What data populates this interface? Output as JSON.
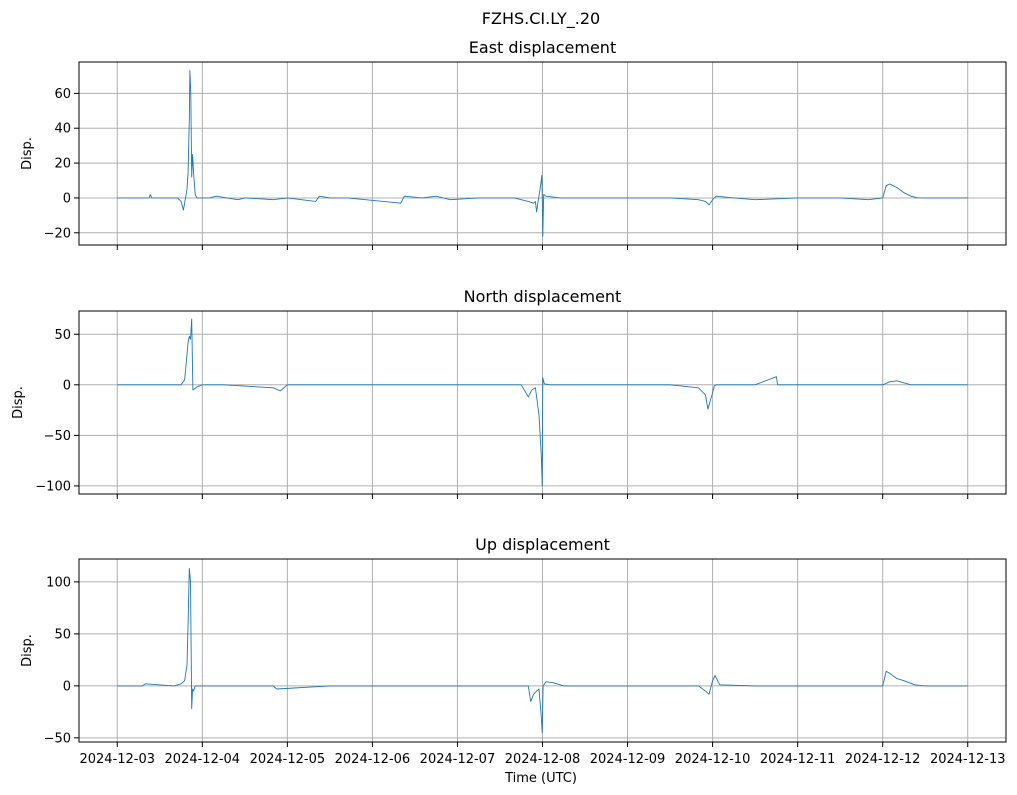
{
  "suptitle": "FZHS.CI.LY_.20",
  "xlabel": "Time (UTC)",
  "line_color": "#1f77b4",
  "chart_data": [
    {
      "type": "line",
      "title": "East displacement",
      "ylabel": "Disp.",
      "xlim": [
        "2024-12-03",
        "2024-12-13"
      ],
      "ylim": [
        -27,
        78
      ],
      "yticks": [
        -20,
        0,
        20,
        40,
        60
      ],
      "ytick_labels": [
        "−20",
        "0",
        "20",
        "40",
        "60"
      ],
      "grid": true,
      "series": [
        {
          "x": [
            "2024-12-03T00:00",
            "2024-12-03T09:00",
            "2024-12-03T09:20",
            "2024-12-03T09:45",
            "2024-12-03T17:00",
            "2024-12-03T18:00",
            "2024-12-03T18:40",
            "2024-12-03T19:15",
            "2024-12-03T19:40",
            "2024-12-03T20:00",
            "2024-12-03T20:20",
            "2024-12-03T20:30",
            "2024-12-03T20:45",
            "2024-12-03T21:00",
            "2024-12-03T21:15",
            "2024-12-03T21:30",
            "2024-12-03T22:00",
            "2024-12-03T22:30",
            "2024-12-04T02:00",
            "2024-12-04T04:00",
            "2024-12-04T10:00",
            "2024-12-04T12:00",
            "2024-12-04T20:00",
            "2024-12-05T00:00",
            "2024-12-05T08:00",
            "2024-12-05T09:00",
            "2024-12-05T12:00",
            "2024-12-05T17:00",
            "2024-12-06T08:00",
            "2024-12-06T09:00",
            "2024-12-06T14:00",
            "2024-12-06T18:00",
            "2024-12-06T22:00",
            "2024-12-07T06:00",
            "2024-12-07T16:00",
            "2024-12-07T18:00",
            "2024-12-07T20:00",
            "2024-12-07T21:30",
            "2024-12-07T22:00",
            "2024-12-07T22:20",
            "2024-12-07T22:40",
            "2024-12-07T23:20",
            "2024-12-07T23:50",
            "2024-12-08T00:05",
            "2024-12-08T00:20",
            "2024-12-08T01:00",
            "2024-12-08T05:00",
            "2024-12-08T12:00",
            "2024-12-08T20:00",
            "2024-12-09T12:00",
            "2024-12-09T20:00",
            "2024-12-09T22:00",
            "2024-12-09T23:00",
            "2024-12-10T00:00",
            "2024-12-10T01:00",
            "2024-12-10T06:00",
            "2024-12-10T12:00",
            "2024-12-11T00:00",
            "2024-12-11T12:00",
            "2024-12-11T20:00",
            "2024-12-12T00:00",
            "2024-12-12T01:00",
            "2024-12-12T02:00",
            "2024-12-12T04:00",
            "2024-12-12T06:00",
            "2024-12-12T08:00",
            "2024-12-12T10:00",
            "2024-12-12T12:00",
            "2024-12-12T14:00",
            "2024-12-13T00:00"
          ],
          "y": [
            0,
            0,
            2,
            0,
            0,
            -2,
            -7,
            0,
            5,
            15,
            45,
            73,
            60,
            12,
            25,
            15,
            2,
            0,
            0,
            1,
            -1,
            0,
            -1,
            0,
            -2,
            1,
            0,
            0,
            -3,
            1,
            0,
            1,
            -1,
            0,
            0,
            -1,
            -2,
            -3,
            -2,
            -8,
            -3,
            5,
            13,
            -22,
            2,
            1,
            0,
            0,
            0,
            0,
            -1,
            -2,
            -4,
            -1,
            1,
            0,
            -1,
            0,
            0,
            -1,
            0,
            7,
            8,
            6,
            3,
            1,
            0,
            0,
            0,
            0
          ]
        }
      ]
    },
    {
      "type": "line",
      "title": "North displacement",
      "ylabel": "Disp.",
      "xlim": [
        "2024-12-03",
        "2024-12-13"
      ],
      "ylim": [
        -108,
        73
      ],
      "yticks": [
        -100,
        -50,
        0,
        50
      ],
      "ytick_labels": [
        "−100",
        "−50",
        "0",
        "50"
      ],
      "grid": true,
      "series": [
        {
          "x": [
            "2024-12-03T00:00",
            "2024-12-03T12:00",
            "2024-12-03T18:00",
            "2024-12-03T19:00",
            "2024-12-03T19:40",
            "2024-12-03T20:00",
            "2024-12-03T20:20",
            "2024-12-03T20:40",
            "2024-12-03T21:00",
            "2024-12-03T21:20",
            "2024-12-03T21:50",
            "2024-12-03T22:30",
            "2024-12-04T00:00",
            "2024-12-04T06:00",
            "2024-12-04T20:00",
            "2024-12-04T22:00",
            "2024-12-05T00:00",
            "2024-12-06T00:00",
            "2024-12-06T12:00",
            "2024-12-07T00:00",
            "2024-12-07T14:00",
            "2024-12-07T18:00",
            "2024-12-07T20:00",
            "2024-12-07T21:00",
            "2024-12-07T22:00",
            "2024-12-07T23:00",
            "2024-12-07T23:40",
            "2024-12-07T23:55",
            "2024-12-08T00:05",
            "2024-12-08T00:30",
            "2024-12-08T02:00",
            "2024-12-08T06:00",
            "2024-12-08T12:00",
            "2024-12-09T00:00",
            "2024-12-09T12:00",
            "2024-12-09T20:00",
            "2024-12-09T22:00",
            "2024-12-09T22:40",
            "2024-12-09T23:10",
            "2024-12-09T23:50",
            "2024-12-10T00:30",
            "2024-12-10T01:00",
            "2024-12-10T02:00",
            "2024-12-10T12:00",
            "2024-12-10T18:00",
            "2024-12-10T18:20",
            "2024-12-10T18:40",
            "2024-12-11T00:00",
            "2024-12-11T12:00",
            "2024-12-12T00:00",
            "2024-12-12T02:00",
            "2024-12-12T04:00",
            "2024-12-12T06:00",
            "2024-12-12T08:00",
            "2024-12-13T00:00"
          ],
          "y": [
            0,
            0,
            0,
            5,
            30,
            42,
            48,
            45,
            65,
            -5,
            -4,
            -2,
            0,
            0,
            -3,
            -6,
            0,
            0,
            0,
            0,
            0,
            0,
            -12,
            -5,
            -3,
            -30,
            -70,
            -100,
            7,
            1,
            0,
            0,
            0,
            0,
            0,
            -3,
            -10,
            -24,
            -18,
            -10,
            -1,
            0,
            0,
            0,
            8,
            0,
            0,
            0,
            0,
            0,
            3,
            4,
            2,
            0,
            0
          ]
        }
      ]
    },
    {
      "type": "line",
      "title": "Up displacement",
      "ylabel": "Disp.",
      "xlim": [
        "2024-12-03",
        "2024-12-13"
      ],
      "ylim": [
        -54,
        122
      ],
      "yticks": [
        -50,
        0,
        50,
        100
      ],
      "ytick_labels": [
        "−50",
        "0",
        "50",
        "100"
      ],
      "grid": true,
      "series": [
        {
          "x": [
            "2024-12-03T00:00",
            "2024-12-03T07:00",
            "2024-12-03T08:00",
            "2024-12-03T16:00",
            "2024-12-03T18:00",
            "2024-12-03T19:00",
            "2024-12-03T19:40",
            "2024-12-03T20:00",
            "2024-12-03T20:20",
            "2024-12-03T20:40",
            "2024-12-03T21:00",
            "2024-12-03T21:15",
            "2024-12-03T21:30",
            "2024-12-03T22:00",
            "2024-12-03T23:00",
            "2024-12-04T06:00",
            "2024-12-04T12:00",
            "2024-12-04T20:00",
            "2024-12-04T21:00",
            "2024-12-05T12:00",
            "2024-12-06T06:00",
            "2024-12-06T07:00",
            "2024-12-06T12:00",
            "2024-12-07T00:00",
            "2024-12-07T12:00",
            "2024-12-07T18:00",
            "2024-12-07T20:00",
            "2024-12-07T20:40",
            "2024-12-07T21:30",
            "2024-12-07T22:20",
            "2024-12-07T23:00",
            "2024-12-07T23:40",
            "2024-12-07T23:55",
            "2024-12-08T00:10",
            "2024-12-08T01:00",
            "2024-12-08T03:00",
            "2024-12-08T06:00",
            "2024-12-09T00:00",
            "2024-12-09T12:00",
            "2024-12-09T20:00",
            "2024-12-09T22:00",
            "2024-12-09T23:00",
            "2024-12-10T00:00",
            "2024-12-10T00:40",
            "2024-12-10T02:00",
            "2024-12-10T12:00",
            "2024-12-11T00:00",
            "2024-12-11T12:00",
            "2024-12-11T22:00",
            "2024-12-12T00:00",
            "2024-12-12T01:00",
            "2024-12-12T02:00",
            "2024-12-12T04:00",
            "2024-12-12T06:00",
            "2024-12-12T09:00",
            "2024-12-12T12:00",
            "2024-12-13T00:00"
          ],
          "y": [
            0,
            0,
            2,
            0,
            2,
            5,
            20,
            60,
            113,
            100,
            -22,
            -3,
            -5,
            0,
            0,
            0,
            0,
            0,
            -3,
            0,
            0,
            0,
            0,
            0,
            0,
            0,
            0,
            -15,
            -8,
            -5,
            -3,
            -30,
            -45,
            0,
            4,
            3,
            0,
            0,
            0,
            0,
            -5,
            -8,
            5,
            10,
            1,
            0,
            0,
            0,
            0,
            0,
            14,
            12,
            7,
            5,
            1,
            0,
            0
          ]
        }
      ]
    }
  ]
}
